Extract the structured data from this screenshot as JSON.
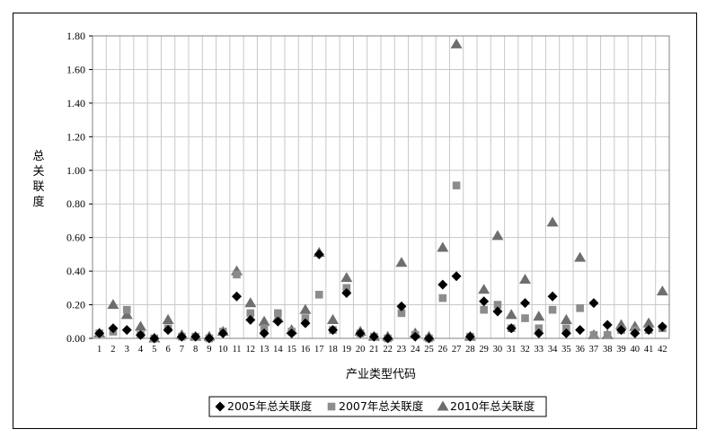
{
  "chart_data": {
    "type": "scatter",
    "title": "",
    "xlabel": "产业类型代码",
    "ylabel": "总关联度",
    "ylim": [
      0,
      1.8
    ],
    "yticks": [
      "0.00",
      "0.20",
      "0.40",
      "0.60",
      "0.80",
      "1.00",
      "1.20",
      "1.40",
      "1.60",
      "1.80"
    ],
    "categories": [
      "1",
      "2",
      "3",
      "4",
      "5",
      "6",
      "7",
      "8",
      "9",
      "10",
      "11",
      "12",
      "13",
      "14",
      "15",
      "16",
      "17",
      "18",
      "19",
      "20",
      "21",
      "22",
      "23",
      "24",
      "25",
      "26",
      "27",
      "28",
      "29",
      "30",
      "31",
      "32",
      "33",
      "34",
      "35",
      "36",
      "37",
      "38",
      "39",
      "40",
      "41",
      "42"
    ],
    "grid": true,
    "legend_position": "bottom",
    "series": [
      {
        "name": "2005年总关联度",
        "marker": "diamond",
        "color": "#000000",
        "values": [
          0.03,
          0.06,
          0.05,
          0.02,
          0.0,
          0.05,
          0.01,
          0.01,
          0.0,
          0.03,
          0.25,
          0.11,
          0.03,
          0.1,
          0.03,
          0.09,
          0.5,
          0.05,
          0.27,
          0.03,
          0.01,
          0.0,
          0.19,
          0.01,
          0.0,
          0.32,
          0.37,
          0.01,
          0.22,
          0.16,
          0.06,
          0.21,
          0.03,
          0.25,
          0.03,
          0.05,
          0.21,
          0.08,
          0.05,
          0.03,
          0.05,
          0.07
        ]
      },
      {
        "name": "2007年总关联度",
        "marker": "square",
        "color": "#8c8c8c",
        "values": [
          0.03,
          0.04,
          0.17,
          0.02,
          0.0,
          0.06,
          0.01,
          0.01,
          0.0,
          0.04,
          0.38,
          0.15,
          0.06,
          0.15,
          0.04,
          0.12,
          0.26,
          0.05,
          0.3,
          0.03,
          0.01,
          0.0,
          0.15,
          0.02,
          0.0,
          0.24,
          0.91,
          0.01,
          0.17,
          0.2,
          0.06,
          0.12,
          0.06,
          0.17,
          0.06,
          0.18,
          0.02,
          0.02,
          0.05,
          0.05,
          0.05,
          0.06
        ]
      },
      {
        "name": "2010年总关联度",
        "marker": "triangle",
        "color": "#6e6e6e",
        "values": [
          0.03,
          0.2,
          0.14,
          0.07,
          0.0,
          0.11,
          0.02,
          0.01,
          0.01,
          0.04,
          0.4,
          0.21,
          0.1,
          0.12,
          0.05,
          0.17,
          0.51,
          0.11,
          0.36,
          0.04,
          0.01,
          0.01,
          0.45,
          0.03,
          0.01,
          0.54,
          1.75,
          0.01,
          0.29,
          0.61,
          0.14,
          0.35,
          0.13,
          0.69,
          0.11,
          0.48,
          0.02,
          0.02,
          0.08,
          0.07,
          0.09,
          0.28
        ]
      }
    ]
  }
}
